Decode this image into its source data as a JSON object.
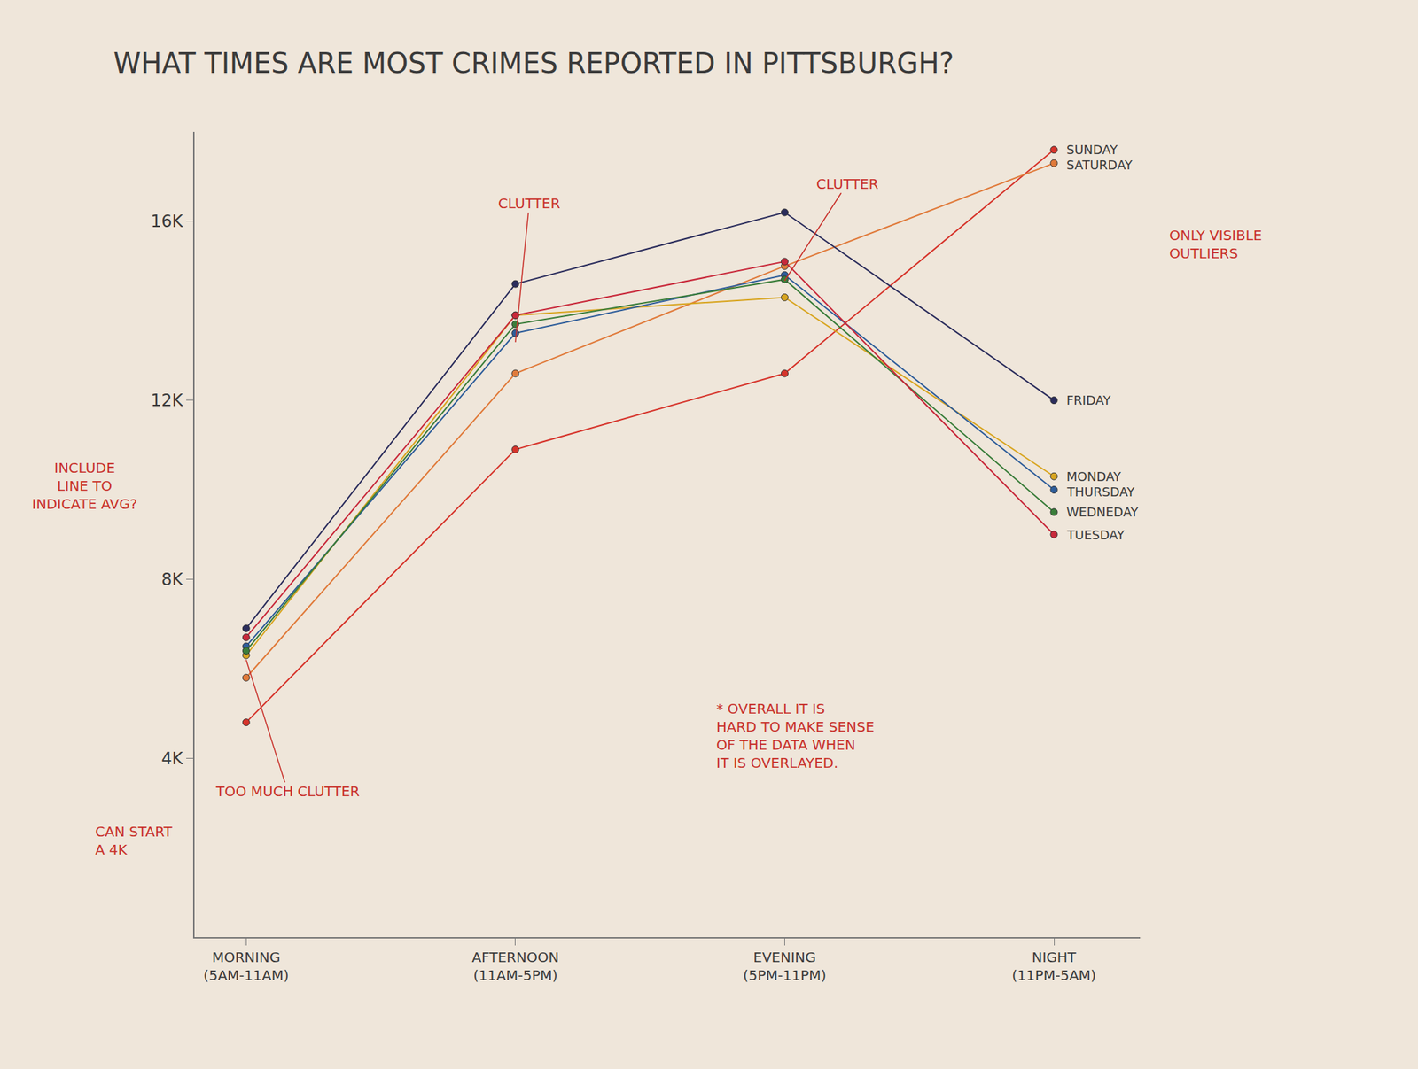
{
  "chart_data": {
    "type": "line",
    "title": "WHAT TIMES ARE MOST CRIMES REPORTED IN PITTSBURGH?",
    "categories": [
      "MORNING (5AM-11AM)",
      "AFTERNOON (11AM-5PM)",
      "EVENING (5PM-11PM)",
      "NIGHT (11PM-5AM)"
    ],
    "series": [
      {
        "name": "SUNDAY",
        "color": "#d6342b",
        "values": [
          4800,
          10900,
          12600,
          17600
        ]
      },
      {
        "name": "SATURDAY",
        "color": "#e07a3a",
        "values": [
          5800,
          12600,
          15000,
          17300
        ]
      },
      {
        "name": "FRIDAY",
        "color": "#2b2d5c",
        "values": [
          6900,
          14600,
          16200,
          12000
        ]
      },
      {
        "name": "MONDAY",
        "color": "#d8a520",
        "values": [
          6300,
          13900,
          14300,
          10300
        ]
      },
      {
        "name": "THURSDAY",
        "color": "#2e5d9a",
        "values": [
          6500,
          13500,
          14800,
          10000
        ]
      },
      {
        "name": "WEDNEDAY",
        "color": "#3a7d3a",
        "values": [
          6400,
          13700,
          14700,
          9500
        ]
      },
      {
        "name": "TUESDAY",
        "color": "#c8283a",
        "values": [
          6700,
          13900,
          15100,
          9000
        ]
      }
    ],
    "ylim": [
      0,
      18000
    ],
    "yticks": [
      {
        "value": 4000,
        "label": "4K"
      },
      {
        "value": 8000,
        "label": "8K"
      },
      {
        "value": 12000,
        "label": "12K"
      },
      {
        "value": 16000,
        "label": "16K"
      }
    ],
    "grid": false,
    "marker": "circle",
    "annotations": [
      {
        "text": "CLUTTER"
      },
      {
        "text": "CLUTTER"
      },
      {
        "text": "TOO MUCH CLUTTER"
      },
      {
        "text": "ONLY VISIBLE\nOUTLIERS"
      },
      {
        "text": "INCLUDE\nLINE TO\nINDICATE AVG?"
      },
      {
        "text": "CAN START\nA 4K"
      },
      {
        "text": "* OVERALL IT IS\nHARD TO MAKE SENSE\nOF THE DATA WHEN\nIT IS OVERLAYED."
      }
    ]
  }
}
